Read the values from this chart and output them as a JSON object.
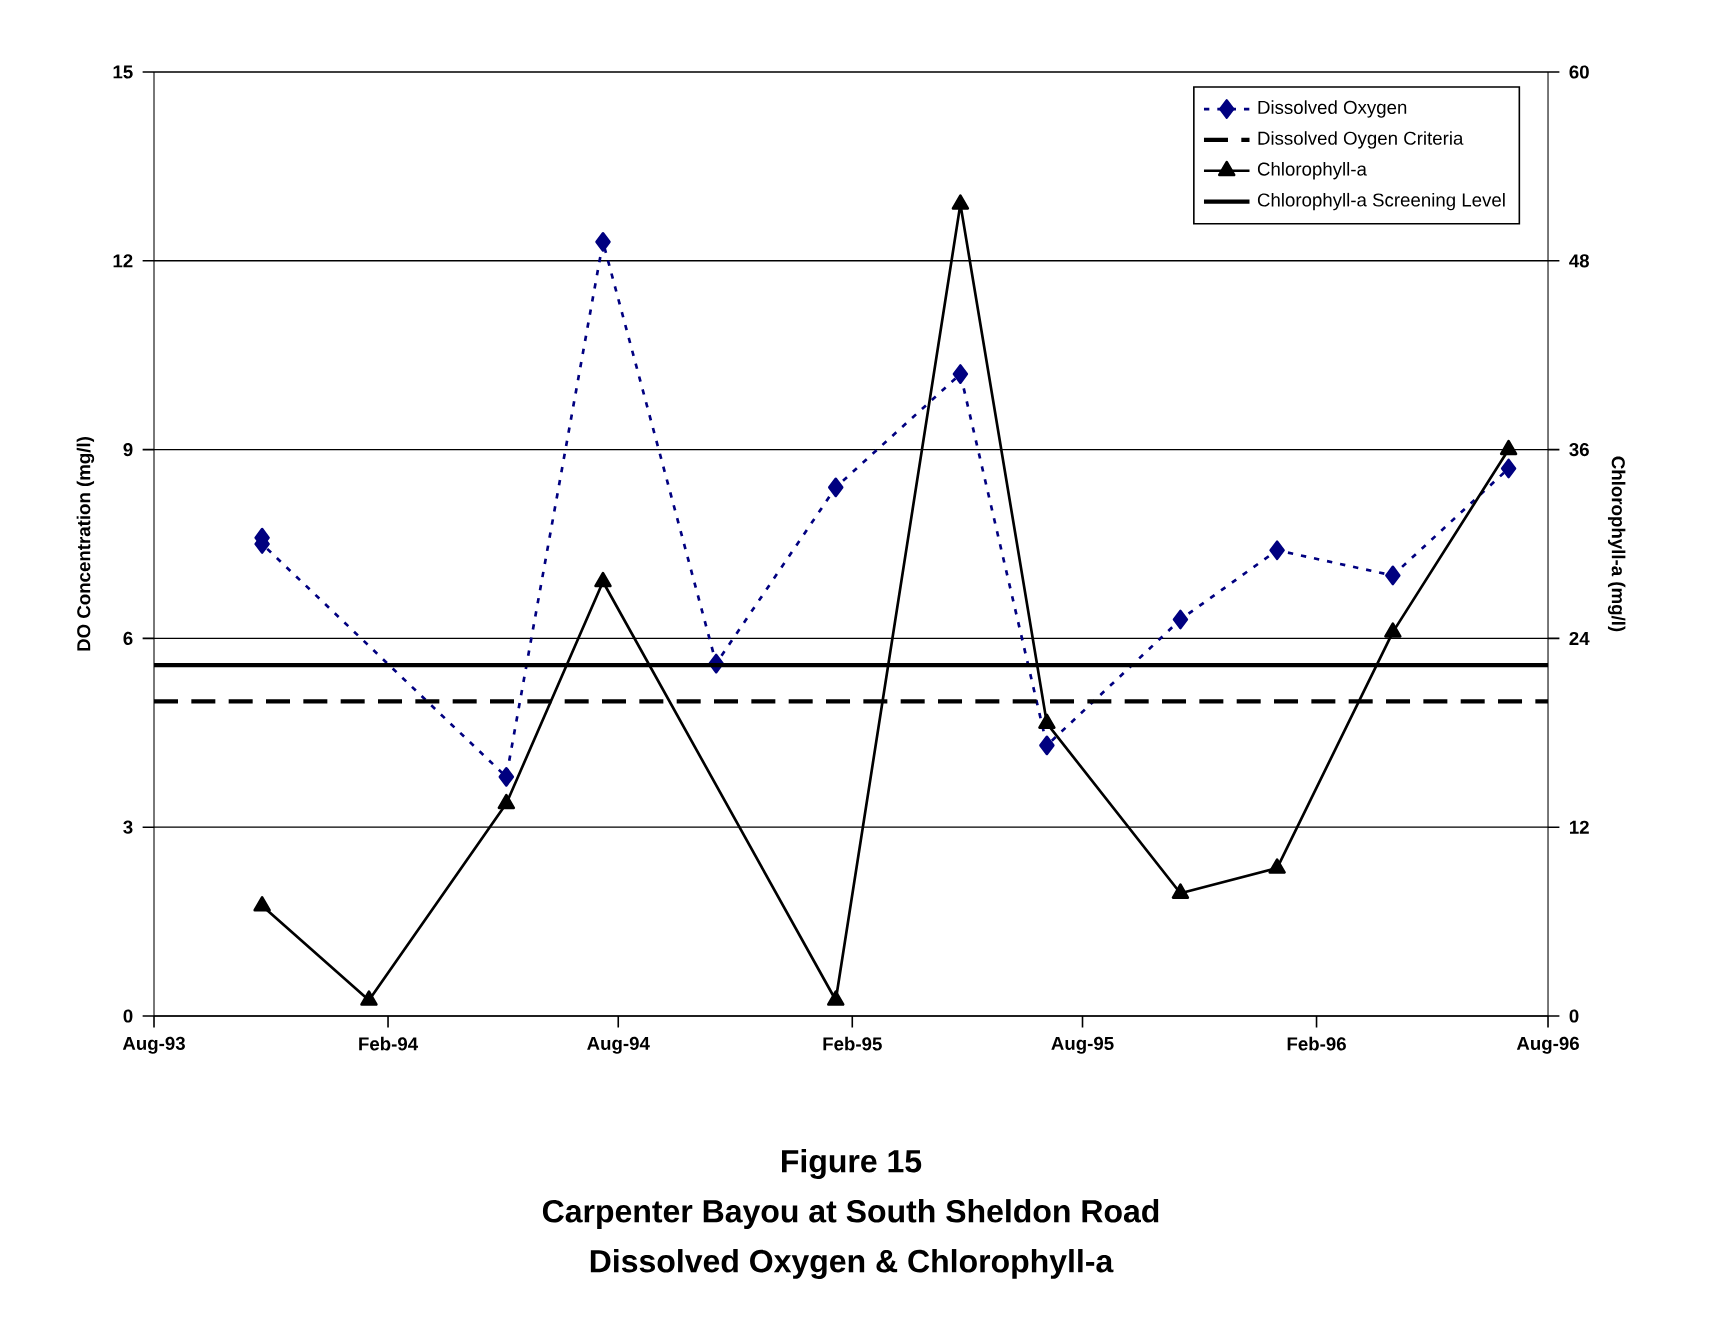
{
  "chart_data": {
    "type": "line",
    "title": "Figure 15",
    "subtitle": "Carpenter Bayou at South Sheldon Road",
    "annotations": [
      "Dissolved Oxygen & Chlorophyll-a"
    ],
    "ylabel": "DO Concentration (mg/l)",
    "y2label": "Chlorophyll-a (mg/l)",
    "xlim": [
      "1993-08",
      "1996-08"
    ],
    "xticks": [
      {
        "value": "1993-08",
        "label": "Aug-93"
      },
      {
        "value": "1994-02",
        "label": "Feb-94"
      },
      {
        "value": "1994-08",
        "label": "Aug-94"
      },
      {
        "value": "1995-02",
        "label": "Feb-95"
      },
      {
        "value": "1995-08",
        "label": "Aug-95"
      },
      {
        "value": "1996-02",
        "label": "Feb-96"
      },
      {
        "value": "1996-08",
        "label": "Aug-96"
      }
    ],
    "ylim": [
      0,
      15
    ],
    "yticks": [
      0,
      3,
      6,
      9,
      12,
      15
    ],
    "y2lim": [
      0,
      60
    ],
    "y2ticks": [
      0,
      12,
      24,
      36,
      48,
      60
    ],
    "grid": "y",
    "legend": "top right",
    "series": [
      {
        "name": "Dissolved Oxygen",
        "color": "#000080",
        "marker": "diamond",
        "line_style": "dotted",
        "axis": "y",
        "x": [
          "1993-10-25",
          "1993-10-25",
          "1994-05-05",
          "1994-07-20",
          "1994-10-17",
          "1995-01-19",
          "1995-04-27",
          "1995-07-04",
          "1995-10-17",
          "1996-01-01",
          "1996-04-01",
          "1996-07-01"
        ],
        "values": [
          7.6,
          7.5,
          3.8,
          12.3,
          5.6,
          8.4,
          10.2,
          4.3,
          6.3,
          7.4,
          7.0,
          8.7
        ]
      },
      {
        "name": "Chlorophyll-a",
        "color": "#000000",
        "marker": "triangle",
        "line_style": "solid",
        "axis": "y2",
        "x": [
          "1993-10-25",
          "1994-01-17",
          "1994-05-05",
          "1994-07-20",
          "1995-01-19",
          "1995-04-27",
          "1995-07-04",
          "1995-10-17",
          "1996-01-01",
          "1996-04-01",
          "1996-07-01"
        ],
        "values": [
          7,
          1,
          13.5,
          27.6,
          1,
          51.6,
          18.6,
          7.8,
          9.4,
          24.4,
          36
        ]
      }
    ],
    "ref_lines": [
      {
        "axis": "y",
        "value": 5,
        "label": "Dissolved Oygen Criteria",
        "color": "#000000",
        "line_style": "dashed"
      },
      {
        "axis": "y2",
        "value": 22.3,
        "label": "Chlorophyll-a Screening Level",
        "color": "#000000",
        "line_style": "solid"
      }
    ]
  }
}
